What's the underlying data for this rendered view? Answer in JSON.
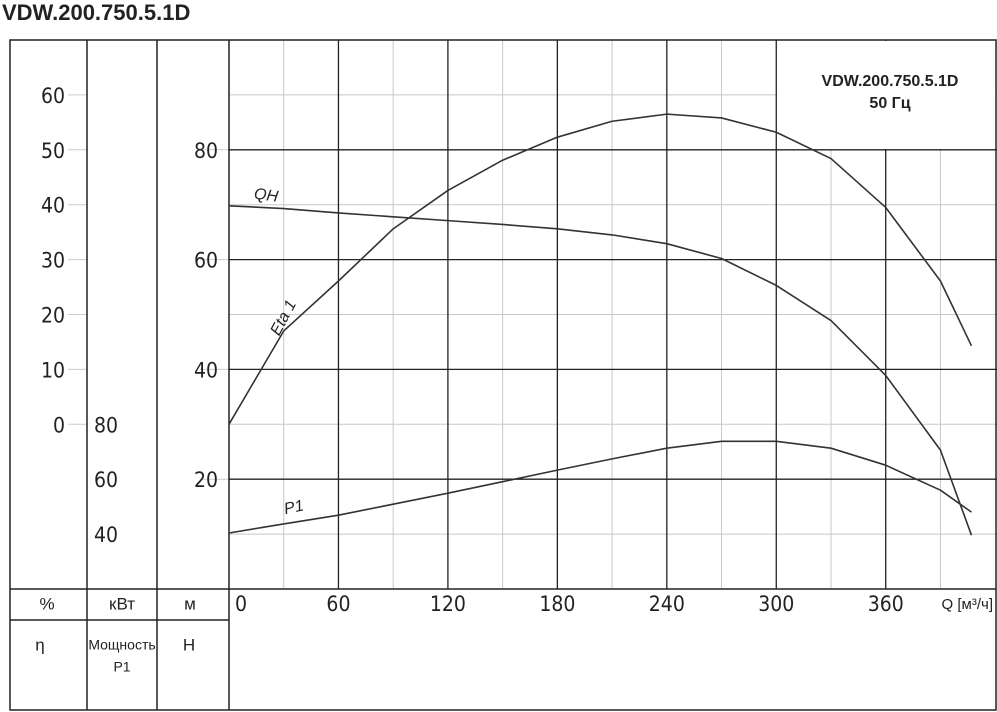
{
  "chart_data": {
    "type": "line",
    "title": "VDW.200.750.5.1D",
    "subtitle": "VDW.200.750.5.1D",
    "annotation": "50 Гц",
    "x_label": "Q [м³/ч]",
    "x": [
      0,
      30,
      60,
      90,
      120,
      150,
      180,
      210,
      240,
      270,
      300,
      330,
      360,
      390,
      407
    ],
    "xlim": [
      0,
      421
    ],
    "xticks": [
      0,
      60,
      120,
      180,
      240,
      300,
      360
    ],
    "xminor": [
      30,
      90,
      150,
      210,
      270,
      330,
      390
    ],
    "ylim": [
      0,
      100
    ],
    "yticks": [
      20,
      40,
      60,
      80
    ],
    "yminor": [
      10,
      30,
      50,
      70,
      90
    ],
    "y_unit": "м",
    "y_label": "H",
    "y2lim": [
      -30,
      70
    ],
    "y2ticks": [
      0,
      10,
      20,
      30,
      40,
      50,
      60
    ],
    "y2_unit": "%",
    "y2_label": "η",
    "y3lim": [
      20,
      220
    ],
    "y3ticks": [
      40,
      60,
      80
    ],
    "y3_unit": "кВт",
    "y3_label": [
      "Мощность",
      "P1"
    ],
    "grid": true,
    "series": [
      {
        "name": "QH",
        "color": "#333333",
        "axis": "y",
        "values": [
          69.8,
          69.3,
          68.5,
          67.8,
          67.1,
          66.4,
          65.6,
          64.5,
          62.9,
          60.2,
          55.3,
          48.9,
          38.9,
          25.3,
          9.8
        ]
      },
      {
        "name": "Eta 1",
        "color": "#333333",
        "axis": "y2",
        "values": [
          0,
          17,
          26.1,
          35.6,
          42.6,
          48.1,
          52.3,
          55.2,
          56.5,
          55.8,
          53.2,
          48.4,
          39.5,
          26.1,
          14.3
        ]
      },
      {
        "name": "P1",
        "color": "#333333",
        "axis": "y3",
        "values": [
          40.4,
          43.7,
          46.9,
          50.9,
          54.9,
          59.1,
          63.3,
          67.4,
          71.3,
          73.8,
          73.8,
          71.3,
          65.1,
          56,
          48
        ]
      }
    ]
  }
}
